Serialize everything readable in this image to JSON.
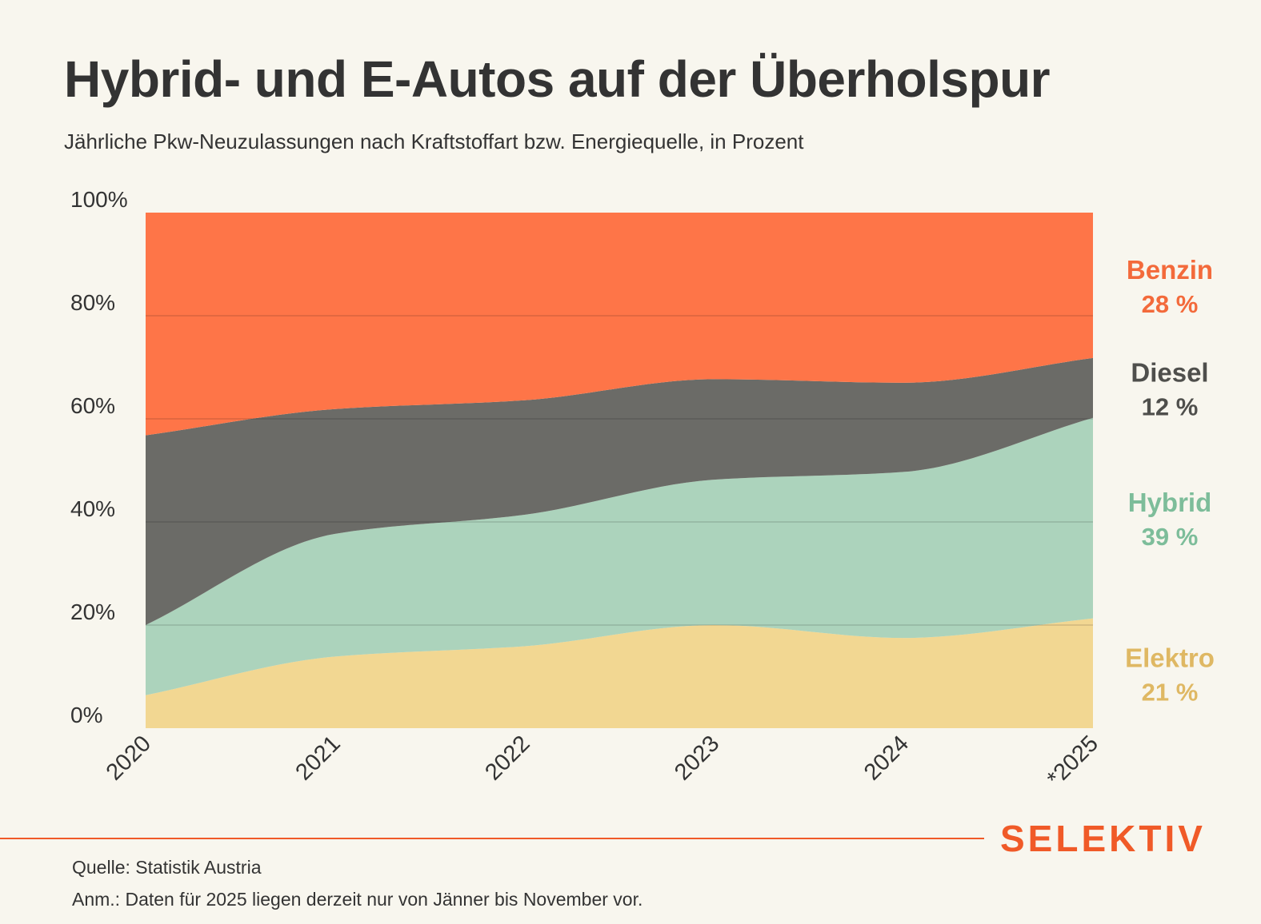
{
  "header": {
    "title": "Hybrid- und E-Autos auf der Überholspur",
    "subtitle": "Jährliche Pkw-Neuzulassungen nach Kraftstoffart bzw. Energiequelle, in Prozent"
  },
  "chart_data": {
    "type": "area",
    "stacked": true,
    "title": "Hybrid- und E-Autos auf der Überholspur",
    "subtitle": "Jährliche Pkw-Neuzulassungen nach Kraftstoffart bzw. Energiequelle, in Prozent",
    "categories": [
      "2020",
      "2021",
      "2022",
      "2023",
      "2024",
      "*2025"
    ],
    "ylim": [
      0,
      100
    ],
    "yticks": [
      0,
      20,
      40,
      60,
      80,
      100
    ],
    "ytick_labels": [
      "0%",
      "20%",
      "40%",
      "60%",
      "80%",
      "100%"
    ],
    "grid": true,
    "series": [
      {
        "name": "Elektro",
        "values": [
          6.4,
          13.9,
          15.9,
          20.0,
          17.5,
          21.3
        ],
        "color": "#f2d792",
        "label_color": "#dfb863",
        "end_label": "Elektro",
        "end_value": "21 %"
      },
      {
        "name": "Hybrid",
        "values": [
          13.6,
          23.8,
          25.5,
          28.2,
          32.2,
          38.9
        ],
        "color": "#acd3bc",
        "label_color": "#7dbd9a",
        "end_label": "Hybrid",
        "end_value": "39 %"
      },
      {
        "name": "Diesel",
        "values": [
          36.8,
          24.2,
          22.2,
          19.5,
          17.3,
          11.6
        ],
        "color": "#6b6b67",
        "label_color": "#4f4f4c",
        "end_label": "Diesel",
        "end_value": "12 %"
      },
      {
        "name": "Benzin",
        "values": [
          43.2,
          38.1,
          36.4,
          32.3,
          33.0,
          28.2
        ],
        "color": "#fe7548",
        "label_color": "#f36a3b",
        "end_label": "Benzin",
        "end_value": "28 %"
      }
    ]
  },
  "footer": {
    "brand": "SELEKTIV",
    "source": "Quelle: Statistik Austria",
    "note": "Anm.: Daten für 2025 liegen derzeit nur von Jänner bis November vor."
  },
  "colors": {
    "background": "#f8f6ee",
    "text": "#333333",
    "brand": "#f05a28"
  }
}
